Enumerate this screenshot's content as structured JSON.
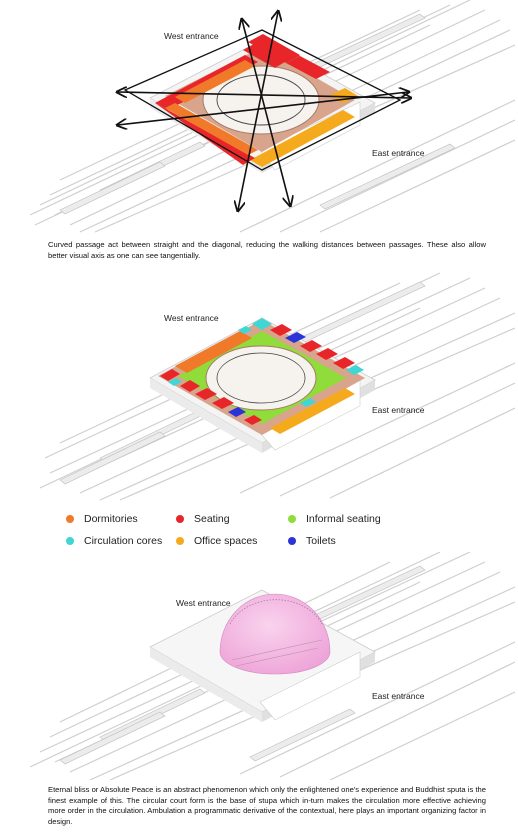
{
  "diagram1": {
    "west_label": "West entrance",
    "east_label": "East entrance",
    "caption": "Curved passage act between straight and the diagonal, reducing the walking distances between passages. These also allow better visual axis as one can see tangentially."
  },
  "diagram2": {
    "west_label": "West entrance",
    "east_label": "East entrance"
  },
  "legend": [
    {
      "label": "Dormitories",
      "color": "#f07a2a"
    },
    {
      "label": "Seating",
      "color": "#e8262a"
    },
    {
      "label": "Informal seating",
      "color": "#8fdc3a"
    },
    {
      "label": "Circulation cores",
      "color": "#3fd6d6"
    },
    {
      "label": "Office spaces",
      "color": "#f5aa1e"
    },
    {
      "label": "Toilets",
      "color": "#2a34d8"
    }
  ],
  "diagram3": {
    "west_label": "West entrance",
    "east_label": "East entrance",
    "caption": "Eternal bliss or Absolute Peace is an abstract phenomenon which only the enlightened one's experience and Buddhist sputa is the finest example of this. The circular court form is the base of  stupa which in-turn makes the circulation more effective achieving  more order in the circulation. Ambulation a programmatic derivative of the contextual, here plays an important organizing factor in design."
  }
}
